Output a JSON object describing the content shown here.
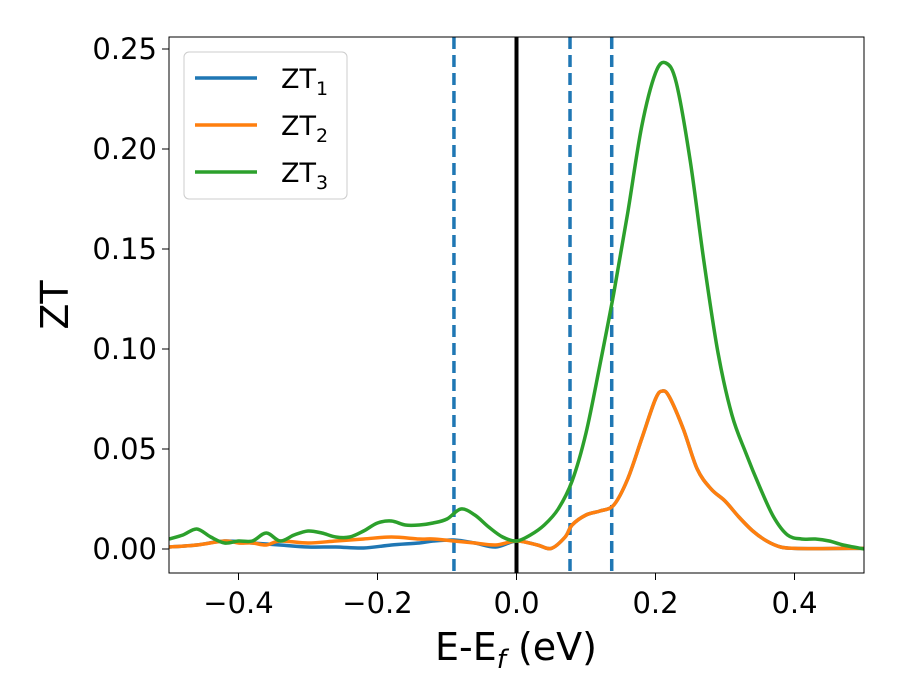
{
  "chart_data": {
    "type": "line",
    "title": "",
    "xlabel_main": "E-E",
    "xlabel_sub": "f",
    "xlabel_unit": " (eV)",
    "ylabel": "ZT",
    "xlim": [
      -0.5,
      0.5
    ],
    "ylim": [
      -0.012,
      0.256
    ],
    "xticks": [
      -0.4,
      -0.2,
      0.0,
      0.2,
      0.4
    ],
    "xtick_labels": [
      "−0.4",
      "−0.2",
      "0.0",
      "0.2",
      "0.4"
    ],
    "yticks": [
      0.0,
      0.05,
      0.1,
      0.15,
      0.2,
      0.25
    ],
    "ytick_labels": [
      "0.00",
      "0.05",
      "0.10",
      "0.15",
      "0.20",
      "0.25"
    ],
    "grid": false,
    "legend_position": "top-left",
    "vlines": [
      {
        "x": 0.0,
        "style": "solid",
        "color": "#000000"
      },
      {
        "x": -0.09,
        "style": "dashed",
        "color": "#1f77b4"
      },
      {
        "x": 0.077,
        "style": "dashed",
        "color": "#1f77b4"
      },
      {
        "x": 0.137,
        "style": "dashed",
        "color": "#1f77b4"
      }
    ],
    "series": [
      {
        "name": "ZT",
        "name_sub": "1",
        "color": "#1f77b4",
        "x": [
          -0.5,
          -0.46,
          -0.42,
          -0.38,
          -0.34,
          -0.3,
          -0.26,
          -0.22,
          -0.18,
          -0.14,
          -0.12,
          -0.09,
          -0.06,
          -0.03,
          0.0,
          0.03,
          0.05,
          0.07,
          0.08,
          0.1,
          0.12,
          0.14,
          0.16,
          0.18,
          0.2,
          0.21,
          0.22,
          0.24,
          0.26,
          0.28,
          0.3,
          0.32,
          0.34,
          0.36,
          0.38,
          0.4,
          0.44,
          0.48,
          0.5
        ],
        "y": [
          0.001,
          0.002,
          0.004,
          0.003,
          0.002,
          0.001,
          0.001,
          0.0005,
          0.002,
          0.003,
          0.004,
          0.0045,
          0.003,
          0.001,
          0.004,
          0.002,
          0.0003,
          0.006,
          0.012,
          0.017,
          0.019,
          0.022,
          0.035,
          0.055,
          0.075,
          0.079,
          0.076,
          0.06,
          0.04,
          0.03,
          0.024,
          0.016,
          0.009,
          0.004,
          0.001,
          0.0003,
          0.0002,
          0.0003,
          0.0003
        ]
      },
      {
        "name": "ZT",
        "name_sub": "2",
        "color": "#ff7f0e",
        "x": [
          -0.5,
          -0.46,
          -0.42,
          -0.4,
          -0.38,
          -0.36,
          -0.34,
          -0.3,
          -0.26,
          -0.22,
          -0.18,
          -0.14,
          -0.12,
          -0.09,
          -0.06,
          -0.03,
          0.0,
          0.03,
          0.05,
          0.07,
          0.08,
          0.1,
          0.12,
          0.14,
          0.16,
          0.18,
          0.2,
          0.21,
          0.22,
          0.24,
          0.26,
          0.28,
          0.3,
          0.32,
          0.34,
          0.36,
          0.38,
          0.4,
          0.44,
          0.48,
          0.5
        ],
        "y": [
          0.001,
          0.002,
          0.004,
          0.003,
          0.003,
          0.002,
          0.004,
          0.003,
          0.004,
          0.005,
          0.006,
          0.005,
          0.005,
          0.004,
          0.003,
          0.002,
          0.004,
          0.002,
          0.0003,
          0.006,
          0.012,
          0.017,
          0.019,
          0.022,
          0.035,
          0.055,
          0.075,
          0.079,
          0.076,
          0.06,
          0.04,
          0.03,
          0.024,
          0.016,
          0.009,
          0.004,
          0.001,
          0.0003,
          0.0002,
          0.0003,
          0.0003
        ]
      },
      {
        "name": "ZT",
        "name_sub": "3",
        "color": "#2ca02c",
        "x": [
          -0.5,
          -0.48,
          -0.46,
          -0.44,
          -0.42,
          -0.4,
          -0.38,
          -0.36,
          -0.34,
          -0.32,
          -0.3,
          -0.28,
          -0.26,
          -0.24,
          -0.22,
          -0.2,
          -0.18,
          -0.16,
          -0.14,
          -0.12,
          -0.1,
          -0.08,
          -0.06,
          -0.04,
          -0.02,
          0.0,
          0.02,
          0.04,
          0.06,
          0.08,
          0.1,
          0.12,
          0.14,
          0.16,
          0.18,
          0.2,
          0.215,
          0.23,
          0.25,
          0.27,
          0.29,
          0.31,
          0.33,
          0.35,
          0.37,
          0.39,
          0.41,
          0.43,
          0.45,
          0.47,
          0.5
        ],
        "y": [
          0.005,
          0.007,
          0.01,
          0.006,
          0.003,
          0.004,
          0.004,
          0.008,
          0.004,
          0.007,
          0.009,
          0.008,
          0.006,
          0.006,
          0.009,
          0.013,
          0.014,
          0.012,
          0.012,
          0.013,
          0.015,
          0.02,
          0.017,
          0.011,
          0.006,
          0.004,
          0.007,
          0.012,
          0.02,
          0.034,
          0.058,
          0.092,
          0.128,
          0.168,
          0.211,
          0.238,
          0.243,
          0.233,
          0.194,
          0.143,
          0.098,
          0.067,
          0.048,
          0.031,
          0.016,
          0.007,
          0.005,
          0.005,
          0.004,
          0.002,
          0.0
        ]
      }
    ]
  }
}
